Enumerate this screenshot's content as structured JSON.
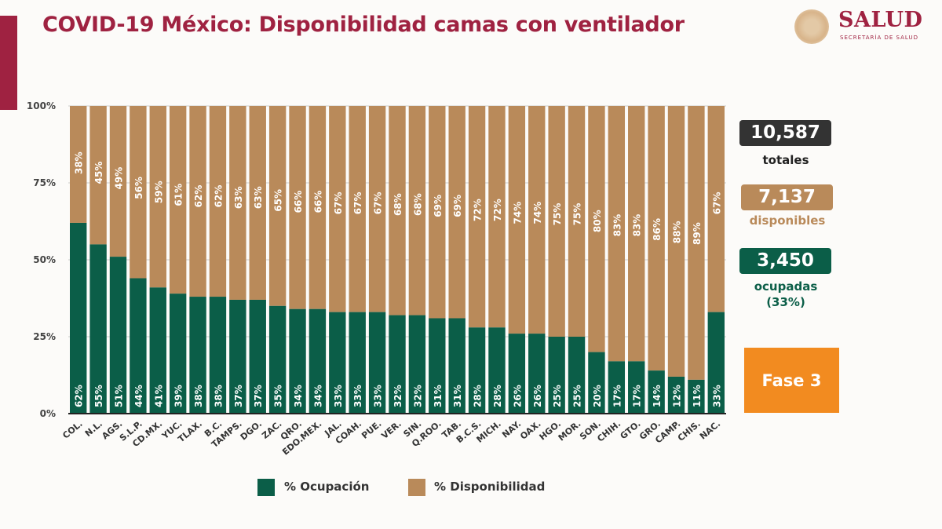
{
  "header": {
    "title": "COVID-19 México: Disponibilidad camas con ventilador",
    "logo_text": "SALUD",
    "logo_subtext": "SECRETARÍA DE SALUD"
  },
  "colors": {
    "ocupacion": "#0b5e48",
    "disponibilidad": "#b98a5a",
    "title": "#9f2241",
    "totales_box": "#333333",
    "fase": "#f28b20"
  },
  "stats": {
    "totales_value": "10,587",
    "totales_label": "totales",
    "disponibles_value": "7,137",
    "disponibles_label": "disponibles",
    "ocupadas_value": "3,450",
    "ocupadas_label": "ocupadas",
    "ocupadas_pct": "(33%)",
    "fase_label": "Fase 3"
  },
  "chart_data": {
    "type": "bar",
    "stacked": true,
    "ylim": [
      0,
      100
    ],
    "yticks": [
      "0%",
      "25%",
      "50%",
      "75%",
      "100%"
    ],
    "grid": true,
    "legend_position": "bottom",
    "categories": [
      "COL.",
      "N.L.",
      "AGS.",
      "S.L.P.",
      "CD.MX.",
      "YUC.",
      "TLAX.",
      "B.C.",
      "TAMPS.",
      "DGO.",
      "ZAC.",
      "QRO.",
      "EDO.MEX.",
      "JAL.",
      "COAH.",
      "PUE.",
      "VER.",
      "SIN.",
      "Q.ROO.",
      "TAB.",
      "B.C.S.",
      "MICH.",
      "NAY.",
      "OAX.",
      "HGO.",
      "MOR.",
      "SON.",
      "CHIH.",
      "GTO.",
      "GRO.",
      "CAMP.",
      "CHIS.",
      "NAC."
    ],
    "series": [
      {
        "name": "% Ocupación",
        "values": [
          62,
          55,
          51,
          44,
          41,
          39,
          38,
          38,
          37,
          37,
          35,
          34,
          34,
          33,
          33,
          33,
          32,
          32,
          31,
          31,
          28,
          28,
          26,
          26,
          25,
          25,
          20,
          17,
          17,
          14,
          12,
          11,
          33
        ]
      },
      {
        "name": "% Disponibilidad",
        "values": [
          38,
          45,
          49,
          56,
          59,
          61,
          62,
          62,
          63,
          63,
          65,
          66,
          66,
          67,
          67,
          67,
          68,
          68,
          69,
          69,
          72,
          72,
          74,
          74,
          75,
          75,
          80,
          83,
          83,
          86,
          88,
          89,
          67
        ]
      }
    ]
  }
}
